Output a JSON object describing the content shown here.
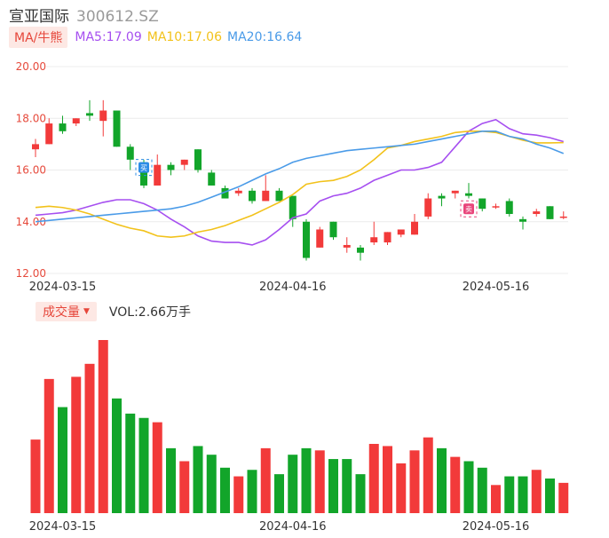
{
  "header": {
    "name": "宣亚国际",
    "code": "300612.SZ"
  },
  "ma": {
    "tag": "MA/牛熊",
    "ma5": "MA5:17.09",
    "ma10": "MA10:17.06",
    "ma20": "MA20:16.64",
    "colors": {
      "ma5": "#a64ff0",
      "ma10": "#f2c21b",
      "ma20": "#4a9be8",
      "up": "#f23a3a",
      "down": "#12a52a"
    }
  },
  "volume": {
    "tag": "成交量",
    "arrow": "▼",
    "text": "VOL:2.66万手"
  },
  "chart_data": [
    {
      "type": "candlestick",
      "y_ticks": [
        "20.00",
        "18.00",
        "16.00",
        "14.00",
        "12.00"
      ],
      "ylim": [
        12,
        20
      ],
      "x_tick_labels": [
        "2024-03-15",
        "2024-04-16",
        "2024-05-16"
      ],
      "x_tick_index": [
        2,
        19,
        34
      ],
      "markers": [
        {
          "label": "买",
          "index": 8,
          "price": 16.1,
          "color": "#2c8ce6"
        },
        {
          "label": "卖",
          "index": 32,
          "price": 14.5,
          "color": "#e8447a"
        }
      ],
      "candles": [
        {
          "o": 16.8,
          "c": 17.0,
          "h": 17.2,
          "l": 16.5
        },
        {
          "o": 17.0,
          "c": 17.8,
          "h": 18.0,
          "l": 17.0
        },
        {
          "o": 17.8,
          "c": 17.5,
          "h": 18.1,
          "l": 17.4
        },
        {
          "o": 17.8,
          "c": 18.0,
          "h": 18.0,
          "l": 17.7
        },
        {
          "o": 18.2,
          "c": 18.1,
          "h": 18.7,
          "l": 17.9
        },
        {
          "o": 17.9,
          "c": 18.3,
          "h": 18.7,
          "l": 17.3
        },
        {
          "o": 18.3,
          "c": 16.9,
          "h": 18.3,
          "l": 16.9
        },
        {
          "o": 16.9,
          "c": 16.4,
          "h": 17.0,
          "l": 16.0
        },
        {
          "o": 16.3,
          "c": 15.4,
          "h": 16.4,
          "l": 15.3
        },
        {
          "o": 15.4,
          "c": 16.2,
          "h": 16.6,
          "l": 15.4
        },
        {
          "o": 16.2,
          "c": 16.0,
          "h": 16.3,
          "l": 15.8
        },
        {
          "o": 16.2,
          "c": 16.4,
          "h": 16.4,
          "l": 16.0
        },
        {
          "o": 16.8,
          "c": 16.0,
          "h": 16.8,
          "l": 15.9
        },
        {
          "o": 15.9,
          "c": 15.4,
          "h": 16.0,
          "l": 15.4
        },
        {
          "o": 15.3,
          "c": 14.9,
          "h": 15.4,
          "l": 14.9
        },
        {
          "o": 15.1,
          "c": 15.2,
          "h": 15.3,
          "l": 15.0
        },
        {
          "o": 15.2,
          "c": 14.8,
          "h": 15.3,
          "l": 14.7
        },
        {
          "o": 14.8,
          "c": 15.2,
          "h": 15.8,
          "l": 14.8
        },
        {
          "o": 15.2,
          "c": 14.8,
          "h": 15.3,
          "l": 14.8
        },
        {
          "o": 15.0,
          "c": 14.1,
          "h": 15.0,
          "l": 13.8
        },
        {
          "o": 14.0,
          "c": 12.6,
          "h": 14.1,
          "l": 12.5
        },
        {
          "o": 13.0,
          "c": 13.7,
          "h": 13.8,
          "l": 13.0
        },
        {
          "o": 14.0,
          "c": 13.4,
          "h": 14.0,
          "l": 13.3
        },
        {
          "o": 13.0,
          "c": 13.1,
          "h": 13.4,
          "l": 12.8
        },
        {
          "o": 13.0,
          "c": 12.8,
          "h": 13.1,
          "l": 12.5
        },
        {
          "o": 13.2,
          "c": 13.4,
          "h": 14.0,
          "l": 13.1
        },
        {
          "o": 13.2,
          "c": 13.6,
          "h": 13.6,
          "l": 13.1
        },
        {
          "o": 13.5,
          "c": 13.7,
          "h": 13.7,
          "l": 13.4
        },
        {
          "o": 13.5,
          "c": 14.0,
          "h": 14.3,
          "l": 13.5
        },
        {
          "o": 14.2,
          "c": 14.9,
          "h": 15.1,
          "l": 14.1
        },
        {
          "o": 15.0,
          "c": 14.9,
          "h": 15.1,
          "l": 14.6
        },
        {
          "o": 15.1,
          "c": 15.2,
          "h": 15.2,
          "l": 14.9
        },
        {
          "o": 15.1,
          "c": 15.0,
          "h": 15.5,
          "l": 14.9
        },
        {
          "o": 14.9,
          "c": 14.5,
          "h": 14.9,
          "l": 14.4
        },
        {
          "o": 14.6,
          "c": 14.6,
          "h": 14.7,
          "l": 14.5
        },
        {
          "o": 14.8,
          "c": 14.3,
          "h": 14.9,
          "l": 14.2
        },
        {
          "o": 14.1,
          "c": 14.0,
          "h": 14.2,
          "l": 13.7
        },
        {
          "o": 14.3,
          "c": 14.4,
          "h": 14.5,
          "l": 14.2
        },
        {
          "o": 14.6,
          "c": 14.1,
          "h": 14.6,
          "l": 14.1
        },
        {
          "o": 14.2,
          "c": 14.2,
          "h": 14.4,
          "l": 14.1
        }
      ],
      "ma_series": [
        {
          "name": "MA5",
          "values": [
            14.25,
            14.3,
            14.35,
            14.45,
            14.6,
            14.75,
            14.85,
            14.85,
            14.7,
            14.45,
            14.1,
            13.8,
            13.45,
            13.25,
            13.2,
            13.2,
            13.1,
            13.3,
            13.7,
            14.15,
            14.3,
            14.8,
            15.0,
            15.1,
            15.3,
            15.6,
            15.8,
            16.0,
            16.0,
            16.1,
            16.3,
            16.9,
            17.5,
            17.8,
            17.95,
            17.6,
            17.4,
            17.35,
            17.25,
            17.1
          ]
        },
        {
          "name": "MA10",
          "values": [
            14.55,
            14.6,
            14.55,
            14.45,
            14.3,
            14.1,
            13.9,
            13.75,
            13.65,
            13.45,
            13.4,
            13.45,
            13.6,
            13.7,
            13.85,
            14.05,
            14.25,
            14.5,
            14.75,
            15.05,
            15.45,
            15.55,
            15.6,
            15.75,
            16.0,
            16.4,
            16.85,
            16.95,
            17.1,
            17.2,
            17.3,
            17.45,
            17.5,
            17.5,
            17.45,
            17.3,
            17.15,
            17.05,
            17.05,
            17.06
          ]
        },
        {
          "name": "MA20",
          "values": [
            14.0,
            14.05,
            14.1,
            14.15,
            14.2,
            14.25,
            14.3,
            14.35,
            14.4,
            14.45,
            14.5,
            14.6,
            14.75,
            14.95,
            15.15,
            15.35,
            15.6,
            15.85,
            16.05,
            16.3,
            16.45,
            16.55,
            16.65,
            16.75,
            16.8,
            16.85,
            16.9,
            16.95,
            17.0,
            17.1,
            17.2,
            17.3,
            17.4,
            17.5,
            17.5,
            17.3,
            17.2,
            17.0,
            16.85,
            16.64
          ]
        }
      ]
    },
    {
      "type": "bar",
      "title": "成交量",
      "x_tick_labels": [
        "2024-03-15",
        "2024-04-16",
        "2024-05-16"
      ],
      "values": [
        3.4,
        6.2,
        4.9,
        6.3,
        6.9,
        8.0,
        5.3,
        4.6,
        4.4,
        4.2,
        3.0,
        2.4,
        3.1,
        2.7,
        2.1,
        1.7,
        2.0,
        3.0,
        1.8,
        2.7,
        3.0,
        2.9,
        2.5,
        2.5,
        1.8,
        3.2,
        3.1,
        2.3,
        2.9,
        3.5,
        3.0,
        2.6,
        2.4,
        2.1,
        1.3,
        1.7,
        1.7,
        2.0,
        1.6,
        1.4
      ],
      "up": [
        true,
        true,
        false,
        true,
        true,
        true,
        false,
        false,
        false,
        true,
        false,
        true,
        false,
        false,
        false,
        true,
        false,
        true,
        false,
        false,
        false,
        true,
        false,
        false,
        false,
        true,
        true,
        true,
        true,
        true,
        false,
        true,
        false,
        false,
        true,
        false,
        false,
        true,
        false,
        true
      ]
    }
  ]
}
